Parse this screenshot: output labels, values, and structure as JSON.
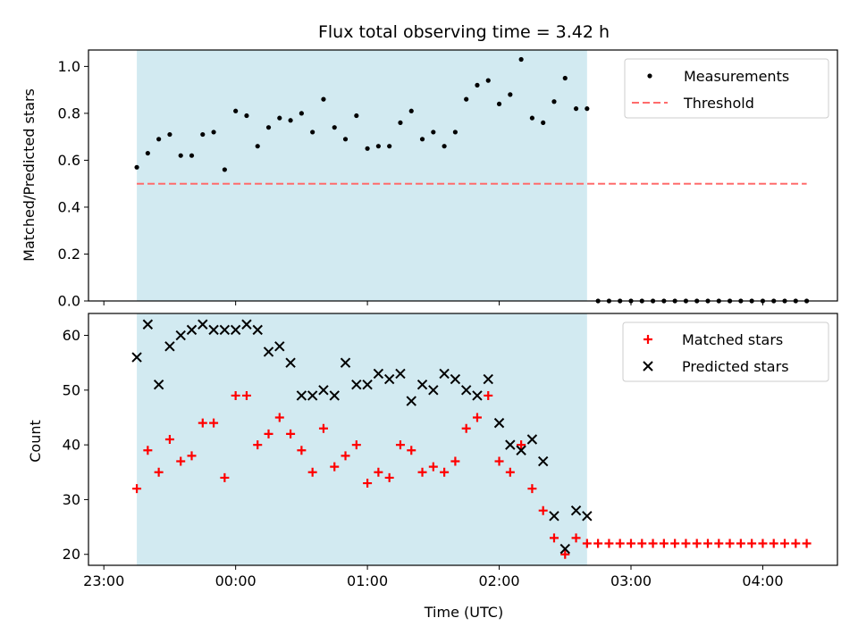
{
  "title": "Flux total observing time = 3.42 h",
  "colors": {
    "shade": "#add8e6",
    "measurement": "#000000",
    "threshold": "#ff6b6b",
    "matched": "#ff0000",
    "predicted": "#000000"
  },
  "chart_data": [
    {
      "type": "scatter",
      "ylabel": "Matched/Predicted stars",
      "ylim": [
        0,
        1.07
      ],
      "yticks": [
        0.0,
        0.2,
        0.4,
        0.6,
        0.8,
        1.0
      ],
      "ytick_labels": [
        "0.0",
        "0.2",
        "0.4",
        "0.6",
        "0.8",
        "1.0"
      ],
      "legend": {
        "placement": "top-right",
        "entries": [
          {
            "key": "measurements",
            "label": "Measurements"
          },
          {
            "key": "threshold",
            "label": "Threshold"
          }
        ]
      },
      "shaded_span": {
        "x": [
          "23:15",
          "02:40"
        ]
      },
      "threshold": {
        "value": 0.5,
        "x": [
          "23:15",
          "04:20"
        ]
      },
      "series": [
        {
          "name": "Measurements",
          "marker": "dot",
          "x": [
            "23:15",
            "23:20",
            "23:25",
            "23:30",
            "23:35",
            "23:40",
            "23:45",
            "23:50",
            "23:55",
            "00:00",
            "00:05",
            "00:10",
            "00:15",
            "00:20",
            "00:25",
            "00:30",
            "00:35",
            "00:40",
            "00:45",
            "00:50",
            "00:55",
            "01:00",
            "01:05",
            "01:10",
            "01:15",
            "01:20",
            "01:25",
            "01:30",
            "01:35",
            "01:40",
            "01:45",
            "01:50",
            "01:55",
            "02:00",
            "02:05",
            "02:10",
            "02:15",
            "02:20",
            "02:25",
            "02:30",
            "02:35",
            "02:40",
            "02:45",
            "02:50",
            "02:55",
            "03:00",
            "03:05",
            "03:10",
            "03:15",
            "03:20",
            "03:25",
            "03:30",
            "03:35",
            "03:40",
            "03:45",
            "03:50",
            "03:55",
            "04:00",
            "04:05",
            "04:10",
            "04:15",
            "04:20"
          ],
          "y": [
            0.57,
            0.63,
            0.69,
            0.71,
            0.62,
            0.62,
            0.71,
            0.72,
            0.56,
            0.81,
            0.79,
            0.66,
            0.74,
            0.78,
            0.77,
            0.8,
            0.72,
            0.86,
            0.74,
            0.69,
            0.79,
            0.65,
            0.66,
            0.66,
            0.76,
            0.81,
            0.69,
            0.72,
            0.66,
            0.72,
            0.86,
            0.92,
            0.94,
            0.84,
            0.88,
            1.03,
            0.78,
            0.76,
            0.85,
            0.95,
            0.82,
            0.82,
            0,
            0,
            0,
            0,
            0,
            0,
            0,
            0,
            0,
            0,
            0,
            0,
            0,
            0,
            0,
            0,
            0,
            0,
            0,
            0
          ]
        }
      ]
    },
    {
      "type": "scatter",
      "ylabel": "Count",
      "xlabel": "Time (UTC)",
      "ylim": [
        18,
        64
      ],
      "yticks": [
        20,
        30,
        40,
        50,
        60
      ],
      "ytick_labels": [
        "20",
        "30",
        "40",
        "50",
        "60"
      ],
      "xticks": [
        "23:00",
        "00:00",
        "01:00",
        "02:00",
        "03:00",
        "04:00"
      ],
      "legend": {
        "placement": "top-right",
        "entries": [
          {
            "key": "matched",
            "label": "Matched stars"
          },
          {
            "key": "predicted",
            "label": "Predicted stars"
          }
        ]
      },
      "shaded_span": {
        "x": [
          "23:15",
          "02:40"
        ]
      },
      "series": [
        {
          "name": "Matched stars",
          "marker": "plus",
          "x": [
            "23:15",
            "23:20",
            "23:25",
            "23:30",
            "23:35",
            "23:40",
            "23:45",
            "23:50",
            "23:55",
            "00:00",
            "00:05",
            "00:10",
            "00:15",
            "00:20",
            "00:25",
            "00:30",
            "00:35",
            "00:40",
            "00:45",
            "00:50",
            "00:55",
            "01:00",
            "01:05",
            "01:10",
            "01:15",
            "01:20",
            "01:25",
            "01:30",
            "01:35",
            "01:40",
            "01:45",
            "01:50",
            "01:55",
            "02:00",
            "02:05",
            "02:10",
            "02:15",
            "02:20",
            "02:25",
            "02:30",
            "02:35",
            "02:40",
            "02:45",
            "02:50",
            "02:55",
            "03:00",
            "03:05",
            "03:10",
            "03:15",
            "03:20",
            "03:25",
            "03:30",
            "03:35",
            "03:40",
            "03:45",
            "03:50",
            "03:55",
            "04:00",
            "04:05",
            "04:10",
            "04:15",
            "04:20"
          ],
          "y": [
            32,
            39,
            35,
            41,
            37,
            38,
            44,
            44,
            34,
            49,
            49,
            40,
            42,
            45,
            42,
            39,
            35,
            43,
            36,
            38,
            40,
            33,
            35,
            34,
            40,
            39,
            35,
            36,
            35,
            37,
            43,
            45,
            49,
            37,
            35,
            40,
            32,
            28,
            23,
            20,
            23,
            22,
            22,
            22,
            22,
            22,
            22,
            22,
            22,
            22,
            22,
            22,
            22,
            22,
            22,
            22,
            22,
            22,
            22,
            22,
            22,
            22
          ]
        },
        {
          "name": "Predicted stars",
          "marker": "x",
          "x": [
            "23:15",
            "23:20",
            "23:25",
            "23:30",
            "23:35",
            "23:40",
            "23:45",
            "23:50",
            "23:55",
            "00:00",
            "00:05",
            "00:10",
            "00:15",
            "00:20",
            "00:25",
            "00:30",
            "00:35",
            "00:40",
            "00:45",
            "00:50",
            "00:55",
            "01:00",
            "01:05",
            "01:10",
            "01:15",
            "01:20",
            "01:25",
            "01:30",
            "01:35",
            "01:40",
            "01:45",
            "01:50",
            "01:55",
            "02:00",
            "02:05",
            "02:10",
            "02:15",
            "02:20",
            "02:25",
            "02:30",
            "02:35",
            "02:40"
          ],
          "y": [
            56,
            62,
            51,
            58,
            60,
            61,
            62,
            61,
            61,
            61,
            62,
            61,
            57,
            58,
            55,
            49,
            49,
            50,
            49,
            55,
            51,
            51,
            53,
            52,
            53,
            48,
            51,
            50,
            53,
            52,
            50,
            49,
            52,
            44,
            40,
            39,
            41,
            37,
            27,
            21,
            28,
            27
          ]
        }
      ]
    }
  ]
}
